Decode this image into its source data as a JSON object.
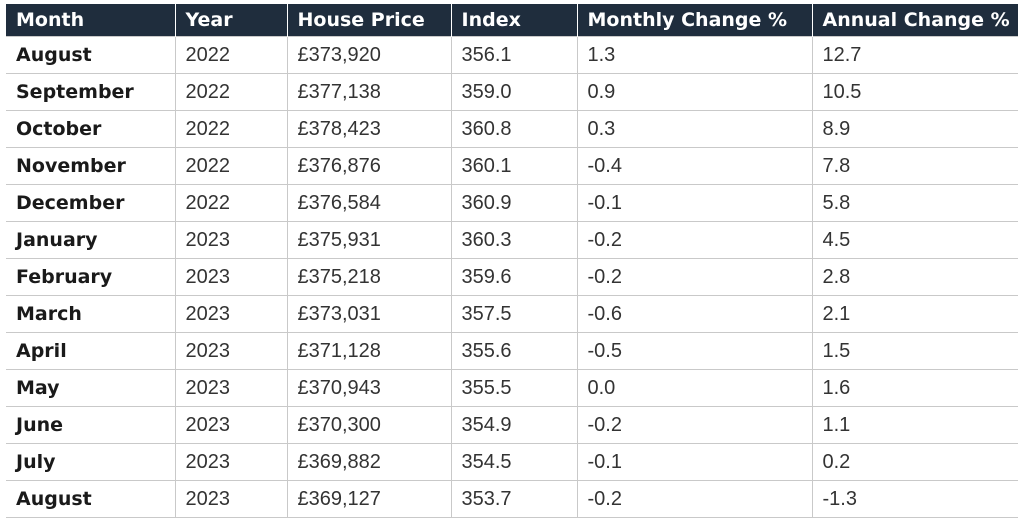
{
  "chart_data": {
    "type": "table",
    "columns": [
      "Month",
      "Year",
      "House Price",
      "Index",
      "Monthly Change %",
      "Annual Change %"
    ],
    "rows": [
      [
        "August",
        "2022",
        "£373,920",
        "356.1",
        "1.3",
        "12.7"
      ],
      [
        "September",
        "2022",
        "£377,138",
        "359.0",
        "0.9",
        "10.5"
      ],
      [
        "October",
        "2022",
        "£378,423",
        "360.8",
        "0.3",
        "8.9"
      ],
      [
        "November",
        "2022",
        "£376,876",
        "360.1",
        "-0.4",
        "7.8"
      ],
      [
        "December",
        "2022",
        "£376,584",
        "360.9",
        "-0.1",
        "5.8"
      ],
      [
        "January",
        "2023",
        "£375,931",
        "360.3",
        "-0.2",
        "4.5"
      ],
      [
        "February",
        "2023",
        "£375,218",
        "359.6",
        "-0.2",
        "2.8"
      ],
      [
        "March",
        "2023",
        "£373,031",
        "357.5",
        "-0.6",
        "2.1"
      ],
      [
        "April",
        "2023",
        "£371,128",
        "355.6",
        "-0.5",
        "1.5"
      ],
      [
        "May",
        "2023",
        "£370,943",
        "355.5",
        "0.0",
        "1.6"
      ],
      [
        "June",
        "2023",
        "£370,300",
        "354.9",
        "-0.2",
        "1.1"
      ],
      [
        "July",
        "2023",
        "£369,882",
        "354.5",
        "-0.1",
        "0.2"
      ],
      [
        "August",
        "2023",
        "£369,127",
        "353.7",
        "-0.2",
        "-1.3"
      ]
    ],
    "header_color": "#1f2d3d"
  }
}
